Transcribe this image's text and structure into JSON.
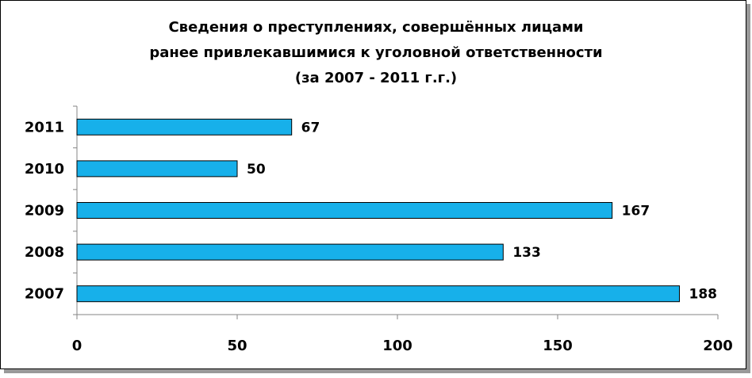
{
  "chart_data": {
    "type": "bar",
    "orientation": "horizontal",
    "title": [
      "Сведения о преступлениях, совершённых лицами",
      "ранее привлекавшимися к уголовной ответственности",
      "(за 2007 - 2011 г.г.)"
    ],
    "categories": [
      "2011",
      "2010",
      "2009",
      "2008",
      "2007"
    ],
    "values": [
      67,
      50,
      167,
      133,
      188
    ],
    "color": "#17b0ea",
    "xlim": [
      0,
      200
    ],
    "xticks": [
      0,
      50,
      100,
      150,
      200
    ],
    "grid": false
  }
}
